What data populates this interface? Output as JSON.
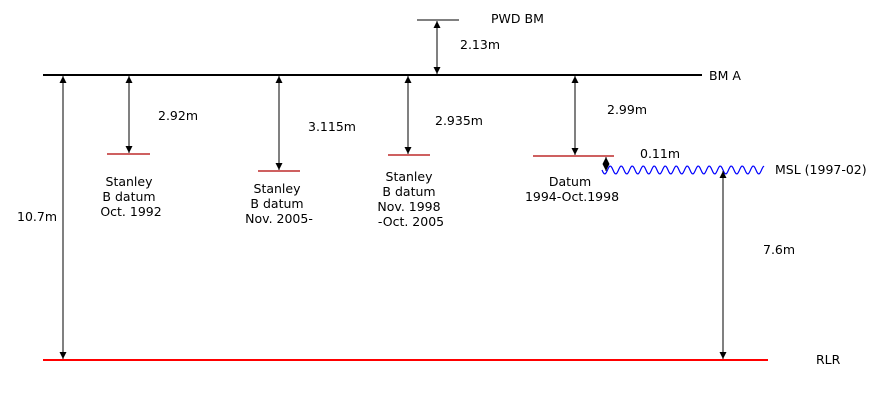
{
  "colors": {
    "line": "#000000",
    "rlr_line": "#ff0000",
    "datum_marker": "#b00000",
    "msl_wave": "#0000ff"
  },
  "reference_lines": {
    "pwd_bm": "PWD BM",
    "bm_a": "BM A",
    "msl": "MSL (1997-02)",
    "rlr": "RLR"
  },
  "measurements": {
    "pwd_to_bm_a": "2.13m",
    "bm_a_to_rlr": "10.7m",
    "datum_1992": "2.92m",
    "datum_2005": "3.115m",
    "datum_1998": "2.935m",
    "datum_1994": "2.99m",
    "datum_to_msl": "0.11m",
    "msl_to_rlr": "7.6m"
  },
  "datums": [
    {
      "lines": [
        "Stanley",
        "B datum",
        "Oct. 1992"
      ]
    },
    {
      "lines": [
        "Stanley",
        "B datum",
        "Nov. 2005-"
      ]
    },
    {
      "lines": [
        "Stanley",
        "B datum",
        "Nov. 1998",
        "-Oct. 2005"
      ]
    },
    {
      "lines": [
        "Datum",
        "1994-Oct.1998"
      ]
    }
  ]
}
